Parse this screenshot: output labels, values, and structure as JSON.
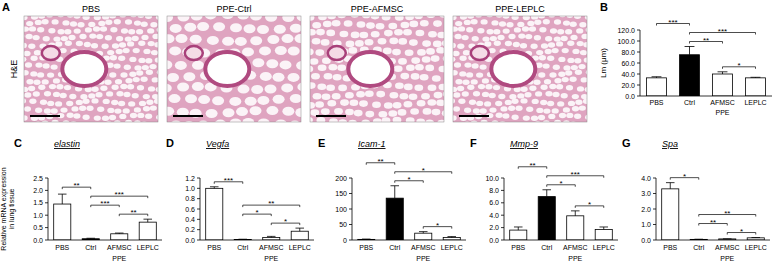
{
  "images": {
    "label": "A",
    "stain": "H&E",
    "titles": [
      "PBS",
      "PPE-Ctrl",
      "PPE-AFMSC",
      "PPE-LEPLC"
    ]
  },
  "y_label_lines": [
    "Relative mRNA expression",
    "in lung tissue"
  ],
  "chart_data": [
    {
      "type": "bar",
      "label": "B",
      "y_label": "Lm (μm)",
      "categories": [
        "PBS",
        "Ctrl",
        "AFMSC",
        "LEPLC"
      ],
      "group": {
        "label": "PPE",
        "members": [
          1,
          2,
          3
        ]
      },
      "values": [
        33,
        75,
        40,
        33
      ],
      "errors": [
        2,
        15,
        4,
        1
      ],
      "colors": [
        "#ffffff",
        "#000000",
        "#ffffff",
        "#ffffff"
      ],
      "ylim": [
        0,
        120
      ],
      "yticks": [
        {
          "value": 0,
          "label": "0.0"
        },
        {
          "value": 20,
          "label": "20.0"
        },
        {
          "value": 40,
          "label": "40.0"
        },
        {
          "value": 60,
          "label": "60.0"
        },
        {
          "value": 80,
          "label": "80.0"
        },
        {
          "value": 100,
          "label": "100.0"
        },
        {
          "value": 120,
          "label": "120.0"
        }
      ],
      "significance": [
        {
          "pair": [
            2,
            3
          ],
          "label": "*"
        },
        {
          "pair": [
            1,
            2
          ],
          "label": "**"
        },
        {
          "pair": [
            1,
            3
          ],
          "label": "***"
        },
        {
          "pair": [
            0,
            1
          ],
          "label": "***"
        }
      ]
    },
    {
      "type": "bar",
      "label": "C",
      "title": "elastin",
      "categories": [
        "PBS",
        "Ctrl",
        "AFMSC",
        "LEPLC"
      ],
      "group": {
        "label": "PPE",
        "members": [
          1,
          2,
          3
        ]
      },
      "values": [
        1.45,
        0.05,
        0.25,
        0.72
      ],
      "errors": [
        0.4,
        0.02,
        0.03,
        0.12
      ],
      "colors": [
        "#ffffff",
        "#000000",
        "#ffffff",
        "#ffffff"
      ],
      "ylim": [
        0,
        2.5
      ],
      "yticks": [
        {
          "value": 0,
          "label": "0.0"
        },
        0.5,
        {
          "value": 1,
          "label": "1.0"
        },
        1.5,
        {
          "value": 2,
          "label": "2.0"
        },
        2.5
      ],
      "significance": [
        {
          "pair": [
            2,
            3
          ],
          "label": "**"
        },
        {
          "pair": [
            1,
            2
          ],
          "label": "***"
        },
        {
          "pair": [
            1,
            3
          ],
          "label": "***"
        },
        {
          "pair": [
            0,
            1
          ],
          "label": "**"
        }
      ]
    },
    {
      "type": "bar",
      "label": "D",
      "title": "Vegfa",
      "categories": [
        "PBS",
        "Ctrl",
        "AFMSC",
        "LEPLC"
      ],
      "group": {
        "label": "PPE",
        "members": [
          1,
          2,
          3
        ]
      },
      "values": [
        1.0,
        0.01,
        0.05,
        0.17
      ],
      "errors": [
        0.03,
        0.005,
        0.02,
        0.06
      ],
      "colors": [
        "#ffffff",
        "#000000",
        "#ffffff",
        "#ffffff"
      ],
      "ylim": [
        0,
        1.2
      ],
      "yticks": [
        {
          "value": 0,
          "label": "0.0"
        },
        0.2,
        0.4,
        0.6,
        0.8,
        {
          "value": 1,
          "label": "1.0"
        },
        1.2
      ],
      "significance": [
        {
          "pair": [
            2,
            3
          ],
          "label": "*"
        },
        {
          "pair": [
            1,
            2
          ],
          "label": "*"
        },
        {
          "pair": [
            1,
            3
          ],
          "label": "**"
        },
        {
          "pair": [
            0,
            1
          ],
          "label": "***"
        }
      ]
    },
    {
      "type": "bar",
      "label": "E",
      "title": "Icam-1",
      "categories": [
        "PBS",
        "Ctrl",
        "AFMSC",
        "LEPLC"
      ],
      "group": {
        "label": "PPE",
        "members": [
          1,
          2,
          3
        ]
      },
      "values": [
        2,
        135,
        22,
        8
      ],
      "errors": [
        1,
        40,
        5,
        3
      ],
      "colors": [
        "#ffffff",
        "#000000",
        "#ffffff",
        "#ffffff"
      ],
      "ylim": [
        0,
        200
      ],
      "yticks": [
        0,
        50,
        100,
        150,
        200
      ],
      "significance": [
        {
          "pair": [
            2,
            3
          ],
          "label": "*"
        },
        {
          "pair": [
            1,
            2
          ],
          "label": "*"
        },
        {
          "pair": [
            1,
            3
          ],
          "label": "*"
        },
        {
          "pair": [
            0,
            1
          ],
          "label": "**"
        }
      ]
    },
    {
      "type": "bar",
      "label": "F",
      "title": "Mmp-9",
      "categories": [
        "PBS",
        "Ctrl",
        "AFMSC",
        "LEPLC"
      ],
      "group": {
        "label": "PPE",
        "members": [
          1,
          2,
          3
        ]
      },
      "values": [
        1.6,
        7.0,
        3.9,
        1.7
      ],
      "errors": [
        0.5,
        1.1,
        0.8,
        0.4
      ],
      "colors": [
        "#ffffff",
        "#000000",
        "#ffffff",
        "#ffffff"
      ],
      "ylim": [
        0,
        10
      ],
      "yticks": [
        {
          "value": 0,
          "label": "0.0"
        },
        {
          "value": 2,
          "label": "2.0"
        },
        {
          "value": 4,
          "label": "4.0"
        },
        {
          "value": 6,
          "label": "6.0"
        },
        {
          "value": 8,
          "label": "8.0"
        },
        {
          "value": 10,
          "label": "10.0"
        }
      ],
      "significance": [
        {
          "pair": [
            2,
            3
          ],
          "label": "*"
        },
        {
          "pair": [
            1,
            2
          ],
          "label": "*"
        },
        {
          "pair": [
            1,
            3
          ],
          "label": "***"
        },
        {
          "pair": [
            0,
            1
          ],
          "label": "**"
        }
      ]
    },
    {
      "type": "bar",
      "label": "G",
      "title": "Spa",
      "categories": [
        "PBS",
        "Ctrl",
        "AFMSC",
        "LEPLC"
      ],
      "group": {
        "label": "PPE",
        "members": [
          1,
          2,
          3
        ]
      },
      "values": [
        3.3,
        0.04,
        0.07,
        0.14
      ],
      "errors": [
        0.4,
        0.01,
        0.005,
        0.02
      ],
      "colors": [
        "#ffffff",
        "#000000",
        "#ffffff",
        "#ffffff"
      ],
      "ylim": [
        0,
        4
      ],
      "yticks": [
        {
          "value": 0,
          "label": "0.0"
        },
        {
          "value": 1,
          "label": "1.0"
        },
        {
          "value": 2,
          "label": "2.0"
        },
        {
          "value": 3,
          "label": "3.0"
        },
        {
          "value": 4,
          "label": "4.0"
        }
      ],
      "significance": [
        {
          "pair": [
            2,
            3
          ],
          "label": "*"
        },
        {
          "pair": [
            1,
            2
          ],
          "label": "**"
        },
        {
          "pair": [
            1,
            3
          ],
          "label": "**"
        },
        {
          "pair": [
            0,
            1
          ],
          "label": "*"
        }
      ]
    }
  ]
}
